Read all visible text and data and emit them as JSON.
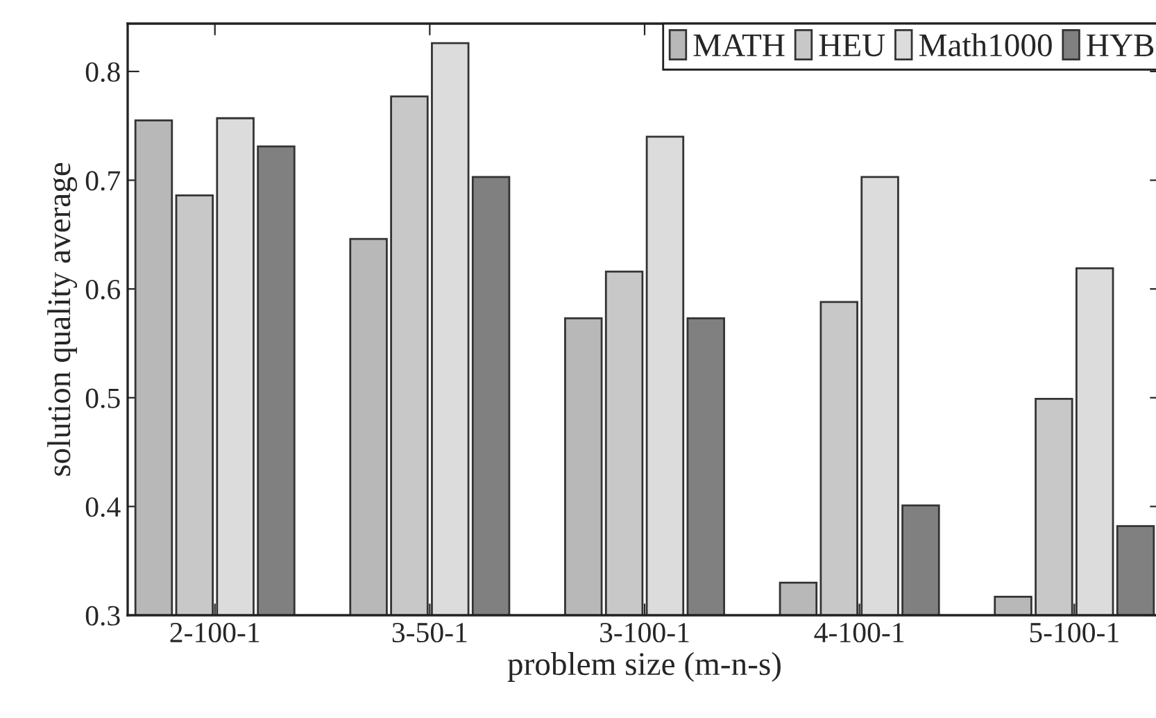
{
  "chart_data": {
    "type": "bar",
    "xlabel": "problem size (m-n-s)",
    "ylabel": "solution quality average",
    "categories": [
      "2-100-1",
      "3-50-1",
      "3-100-1",
      "4-100-1",
      "5-100-1"
    ],
    "series": [
      {
        "name": "MATH",
        "color": "#b8b8b8",
        "values": [
          0.755,
          0.646,
          0.573,
          0.33,
          0.317
        ]
      },
      {
        "name": "HEU",
        "color": "#c8c8c8",
        "values": [
          0.686,
          0.777,
          0.616,
          0.588,
          0.499
        ]
      },
      {
        "name": "Math1000",
        "color": "#dcdcdc",
        "values": [
          0.757,
          0.826,
          0.74,
          0.703,
          0.619
        ]
      },
      {
        "name": "HYB",
        "color": "#808080",
        "values": [
          0.731,
          0.703,
          0.573,
          0.401,
          0.382
        ]
      }
    ],
    "ylim": [
      0.3,
      0.844
    ],
    "yticks": [
      0.3,
      0.4,
      0.5,
      0.6,
      0.7,
      0.8
    ],
    "grid": false,
    "legend": "top right"
  }
}
